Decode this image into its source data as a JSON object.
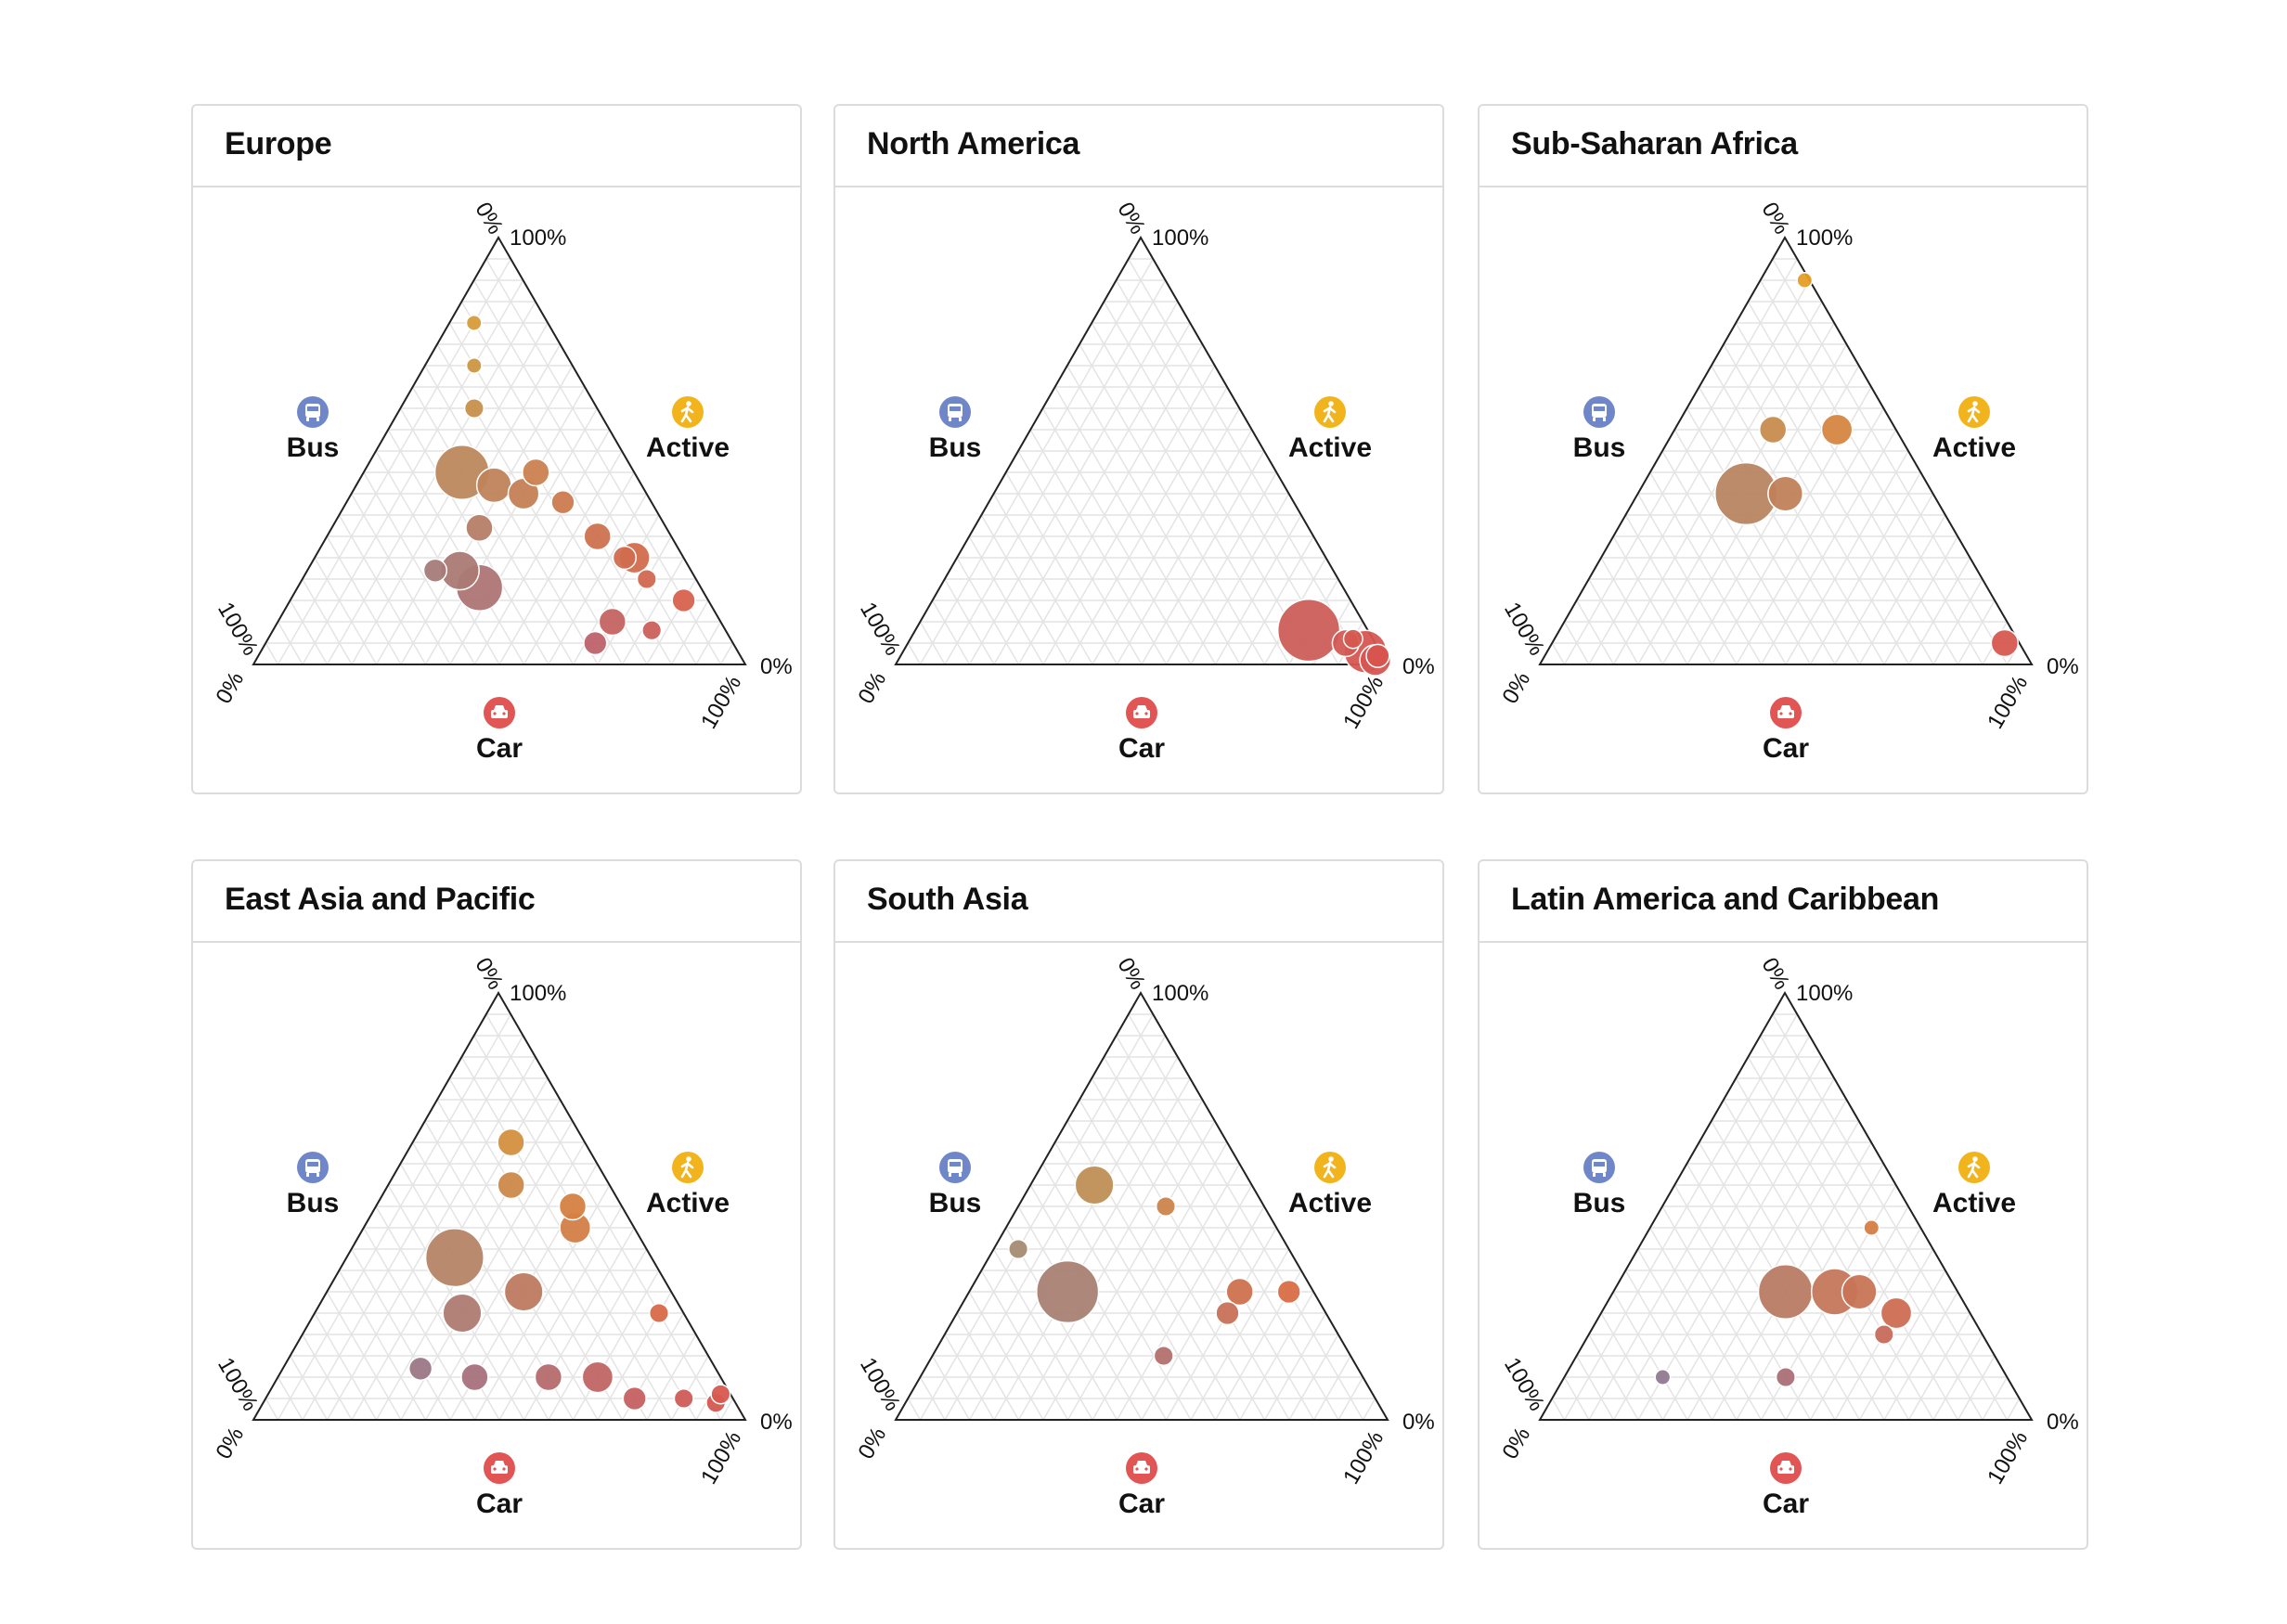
{
  "colors": {
    "bus": "#6f86c9",
    "active": "#f2b41d",
    "car": "#e15554",
    "grid": "#e4e4e4",
    "edge": "#222222"
  },
  "icons": {
    "bus": "bus-icon",
    "active": "walking-person-icon",
    "car": "car-icon"
  },
  "axis_labels": {
    "bus": "Bus",
    "active": "Active",
    "car": "Car",
    "tick_min": "0%",
    "tick_max": "100%"
  },
  "chart_data": [
    {
      "type": "scatter",
      "subtype": "ternary",
      "title": "Europe",
      "axes": [
        "Bus",
        "Active",
        "Car"
      ],
      "points": [
        {
          "bus": 0.52,
          "active": 0.22,
          "car": 0.26,
          "size": 4
        },
        {
          "bus": 0.47,
          "active": 0.22,
          "car": 0.31,
          "size": 8
        },
        {
          "bus": 0.45,
          "active": 0.18,
          "car": 0.37,
          "size": 10
        },
        {
          "bus": 0.35,
          "active": 0.45,
          "car": 0.2,
          "size": 12
        },
        {
          "bus": 0.38,
          "active": 0.32,
          "car": 0.3,
          "size": 5
        },
        {
          "bus": 0.3,
          "active": 0.42,
          "car": 0.28,
          "size": 7
        },
        {
          "bus": 0.25,
          "active": 0.4,
          "car": 0.35,
          "size": 6
        },
        {
          "bus": 0.2,
          "active": 0.45,
          "car": 0.35,
          "size": 5
        },
        {
          "bus": 0.18,
          "active": 0.38,
          "car": 0.44,
          "size": 4
        },
        {
          "bus": 0.15,
          "active": 0.3,
          "car": 0.55,
          "size": 5
        },
        {
          "bus": 0.12,
          "active": 0.25,
          "car": 0.63,
          "size": 4
        },
        {
          "bus": 0.1,
          "active": 0.2,
          "car": 0.7,
          "size": 3
        },
        {
          "bus": 0.25,
          "active": 0.6,
          "car": 0.15,
          "size": 3
        },
        {
          "bus": 0.2,
          "active": 0.7,
          "car": 0.1,
          "size": 2
        },
        {
          "bus": 0.15,
          "active": 0.8,
          "car": 0.05,
          "size": 2
        },
        {
          "bus": 0.1,
          "active": 0.25,
          "car": 0.65,
          "size": 6
        },
        {
          "bus": 0.05,
          "active": 0.15,
          "car": 0.8,
          "size": 4
        },
        {
          "bus": 0.22,
          "active": 0.1,
          "car": 0.68,
          "size": 5
        },
        {
          "bus": 0.28,
          "active": 0.05,
          "car": 0.67,
          "size": 4
        },
        {
          "bus": 0.15,
          "active": 0.08,
          "car": 0.77,
          "size": 3
        }
      ]
    },
    {
      "type": "scatter",
      "subtype": "ternary",
      "title": "North America",
      "axes": [
        "Bus",
        "Active",
        "Car"
      ],
      "points": [
        {
          "bus": 0.12,
          "active": 0.08,
          "car": 0.8,
          "size": 14
        },
        {
          "bus": 0.06,
          "active": 0.05,
          "car": 0.89,
          "size": 5
        },
        {
          "bus": 0.03,
          "active": 0.03,
          "car": 0.94,
          "size": 9
        },
        {
          "bus": 0.02,
          "active": 0.01,
          "car": 0.97,
          "size": 6
        },
        {
          "bus": 0.01,
          "active": 0.02,
          "car": 0.97,
          "size": 4
        },
        {
          "bus": 0.04,
          "active": 0.06,
          "car": 0.9,
          "size": 3
        }
      ]
    },
    {
      "type": "scatter",
      "subtype": "ternary",
      "title": "Sub-Saharan Africa",
      "axes": [
        "Bus",
        "Active",
        "Car"
      ],
      "points": [
        {
          "bus": 0.01,
          "active": 0.9,
          "car": 0.09,
          "size": 2
        },
        {
          "bus": 0.25,
          "active": 0.55,
          "car": 0.2,
          "size": 5
        },
        {
          "bus": 0.12,
          "active": 0.55,
          "car": 0.33,
          "size": 6
        },
        {
          "bus": 0.38,
          "active": 0.4,
          "car": 0.22,
          "size": 14
        },
        {
          "bus": 0.3,
          "active": 0.4,
          "car": 0.3,
          "size": 7
        },
        {
          "bus": 0.03,
          "active": 0.05,
          "car": 0.92,
          "size": 5
        }
      ]
    },
    {
      "type": "scatter",
      "subtype": "ternary",
      "title": "East Asia and Pacific",
      "axes": [
        "Bus",
        "Active",
        "Car"
      ],
      "points": [
        {
          "bus": 0.4,
          "active": 0.38,
          "car": 0.22,
          "size": 13
        },
        {
          "bus": 0.45,
          "active": 0.25,
          "car": 0.3,
          "size": 8
        },
        {
          "bus": 0.6,
          "active": 0.12,
          "car": 0.28,
          "size": 4
        },
        {
          "bus": 0.5,
          "active": 0.1,
          "car": 0.4,
          "size": 5
        },
        {
          "bus": 0.3,
          "active": 0.3,
          "car": 0.4,
          "size": 8
        },
        {
          "bus": 0.2,
          "active": 0.55,
          "car": 0.25,
          "size": 5
        },
        {
          "bus": 0.15,
          "active": 0.65,
          "car": 0.2,
          "size": 5
        },
        {
          "bus": 0.12,
          "active": 0.45,
          "car": 0.43,
          "size": 6
        },
        {
          "bus": 0.1,
          "active": 0.5,
          "car": 0.4,
          "size": 5
        },
        {
          "bus": 0.05,
          "active": 0.25,
          "car": 0.7,
          "size": 3
        },
        {
          "bus": 0.35,
          "active": 0.1,
          "car": 0.55,
          "size": 5
        },
        {
          "bus": 0.25,
          "active": 0.1,
          "car": 0.65,
          "size": 6
        },
        {
          "bus": 0.2,
          "active": 0.05,
          "car": 0.75,
          "size": 4
        },
        {
          "bus": 0.1,
          "active": 0.05,
          "car": 0.85,
          "size": 3
        },
        {
          "bus": 0.04,
          "active": 0.04,
          "car": 0.92,
          "size": 3
        },
        {
          "bus": 0.02,
          "active": 0.06,
          "car": 0.92,
          "size": 3
        }
      ]
    },
    {
      "type": "scatter",
      "subtype": "ternary",
      "title": "South Asia",
      "axes": [
        "Bus",
        "Active",
        "Car"
      ],
      "points": [
        {
          "bus": 0.32,
          "active": 0.55,
          "car": 0.13,
          "size": 8
        },
        {
          "bus": 0.2,
          "active": 0.5,
          "car": 0.3,
          "size": 3
        },
        {
          "bus": 0.55,
          "active": 0.4,
          "car": 0.05,
          "size": 3
        },
        {
          "bus": 0.5,
          "active": 0.3,
          "car": 0.2,
          "size": 14
        },
        {
          "bus": 0.15,
          "active": 0.3,
          "car": 0.55,
          "size": 5
        },
        {
          "bus": 0.2,
          "active": 0.25,
          "car": 0.55,
          "size": 4
        },
        {
          "bus": 0.05,
          "active": 0.3,
          "car": 0.65,
          "size": 4
        },
        {
          "bus": 0.38,
          "active": 0.15,
          "car": 0.47,
          "size": 3
        }
      ]
    },
    {
      "type": "scatter",
      "subtype": "ternary",
      "title": "Latin America and Caribbean",
      "axes": [
        "Bus",
        "Active",
        "Car"
      ],
      "points": [
        {
          "bus": 0.35,
          "active": 0.3,
          "car": 0.35,
          "size": 12
        },
        {
          "bus": 0.25,
          "active": 0.3,
          "car": 0.45,
          "size": 10
        },
        {
          "bus": 0.2,
          "active": 0.3,
          "car": 0.5,
          "size": 7
        },
        {
          "bus": 0.15,
          "active": 0.25,
          "car": 0.6,
          "size": 6
        },
        {
          "bus": 0.1,
          "active": 0.45,
          "car": 0.45,
          "size": 2
        },
        {
          "bus": 0.7,
          "active": 0.1,
          "car": 0.2,
          "size": 2
        },
        {
          "bus": 0.45,
          "active": 0.1,
          "car": 0.45,
          "size": 3
        },
        {
          "bus": 0.2,
          "active": 0.2,
          "car": 0.6,
          "size": 3
        }
      ]
    }
  ]
}
